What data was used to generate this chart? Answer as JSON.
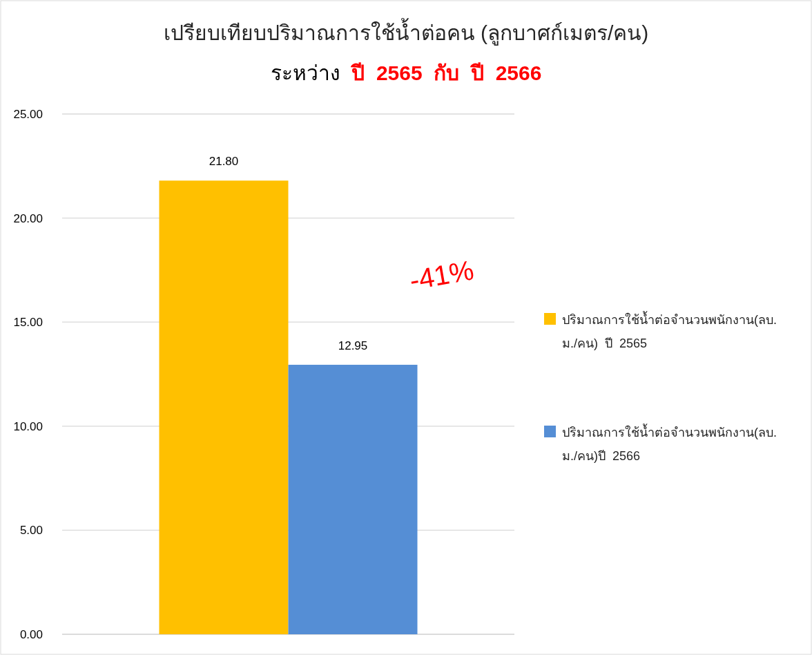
{
  "chart_data": {
    "type": "bar",
    "title": "เปรียบเทียบปริมาณการใช้น้ำต่อคน  (ลูกบาศก์เมตร/คน)",
    "subtitle": "ระหว่าง  ปี  2565  กับ  ปี  2566",
    "categories": [
      null
    ],
    "series": [
      {
        "name": "ปริมาณการใช้น้ำต่อจำนวนพนักงาน(ลบ.ม./คน)  ปี  2565",
        "color": "#ffc000",
        "values": [
          21.8
        ],
        "value_labels": [
          "21.80"
        ]
      },
      {
        "name": "ปริมาณการใช้น้ำต่อจำนวนพนักงาน(ลบ.ม./คน)ปี  2566",
        "color": "#558ed5",
        "values": [
          12.95
        ],
        "value_labels": [
          "12.95"
        ]
      }
    ],
    "ylim": [
      0,
      25
    ],
    "yticks": [
      {
        "value": 0,
        "label": "0.00"
      },
      {
        "value": 5,
        "label": "5.00"
      },
      {
        "value": 10,
        "label": "10.00"
      },
      {
        "value": 15,
        "label": "15.00"
      },
      {
        "value": 20,
        "label": "20.00"
      },
      {
        "value": 25,
        "label": "25.00"
      }
    ],
    "grid": "y",
    "legend": "right",
    "annotations": [
      "-41%"
    ]
  }
}
